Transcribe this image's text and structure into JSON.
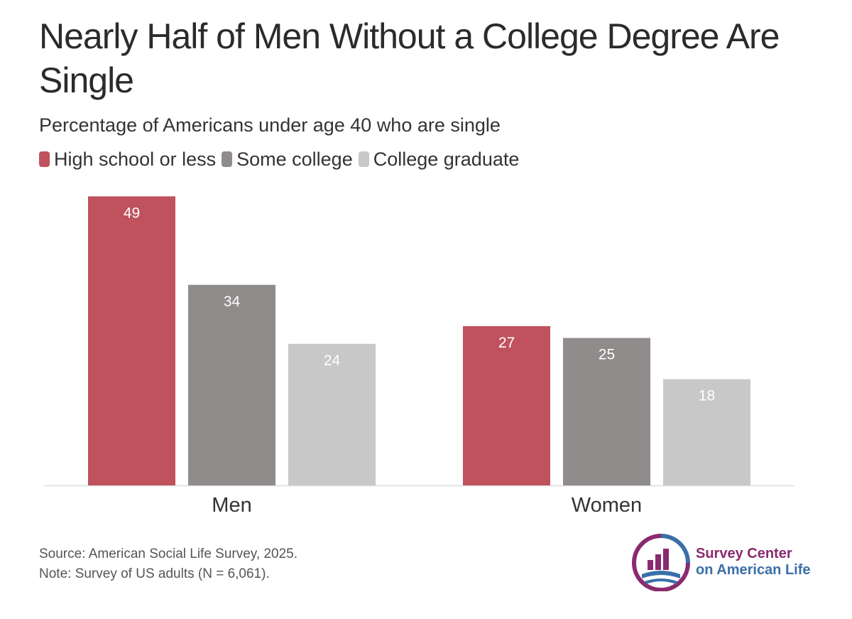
{
  "title": "Nearly Half of Men Without a College Degree Are Single",
  "subtitle": "Percentage of Americans under age 40 who are single",
  "legend": [
    {
      "label": "High school or less",
      "color": "#bf525d"
    },
    {
      "label": "Some college",
      "color": "#8f8c8b"
    },
    {
      "label": "College graduate",
      "color": "#c8c8c8"
    }
  ],
  "chart_data": {
    "type": "bar",
    "categories": [
      "Men",
      "Women"
    ],
    "series": [
      {
        "name": "High school or less",
        "values": [
          49,
          27
        ],
        "color": "#bf525d"
      },
      {
        "name": "Some college",
        "values": [
          34,
          25
        ],
        "color": "#8f8c8b"
      },
      {
        "name": "College graduate",
        "values": [
          24,
          18
        ],
        "color": "#c8c8c8"
      }
    ],
    "ylim": [
      0,
      50
    ],
    "grid": false,
    "legend_position": "top-left"
  },
  "footer": {
    "source": "Source: American Social Life Survey, 2025.",
    "note": "Note: Survey of US adults (N = 6,061)."
  },
  "logo": {
    "line1": "Survey Center",
    "line2": "on American Life"
  }
}
